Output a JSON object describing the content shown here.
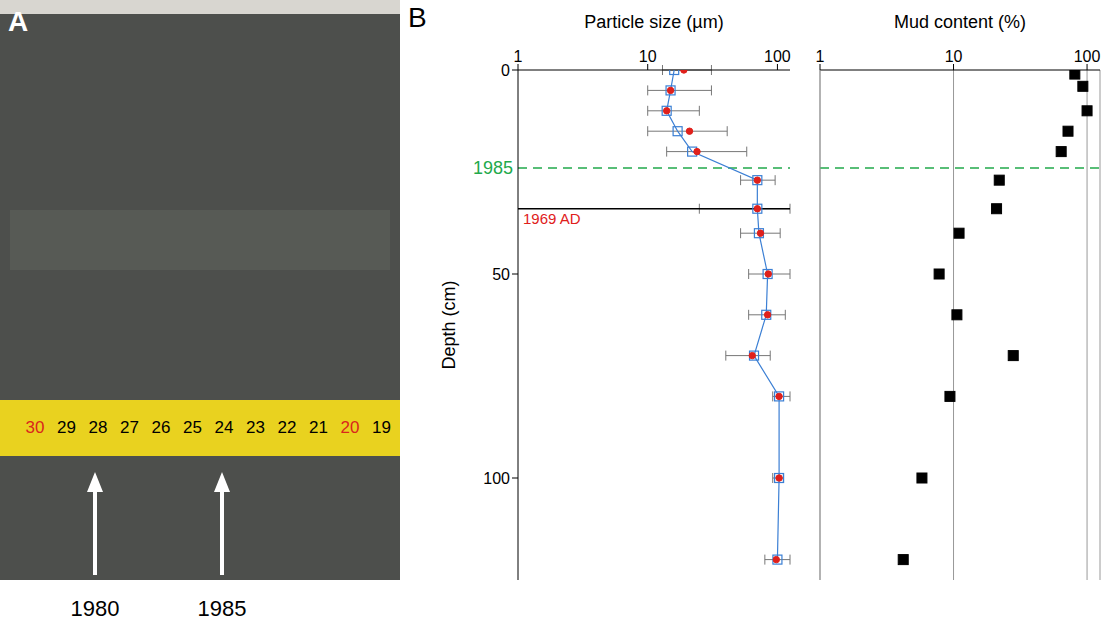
{
  "panel_a": {
    "letter": "A",
    "tape_labels": [
      "30",
      "29",
      "28",
      "27",
      "26",
      "25",
      "24",
      "23",
      "22",
      "21",
      "20",
      "19"
    ],
    "tape_label_colors": [
      "#d9261c",
      "#000000",
      "#000000",
      "#000000",
      "#000000",
      "#000000",
      "#000000",
      "#000000",
      "#000000",
      "#000000",
      "#d9261c",
      "#000000"
    ],
    "arrow_labels": [
      "1980",
      "1985"
    ]
  },
  "panel_b_letter": "B",
  "chart_data": [
    {
      "type": "scatter",
      "x_label": "Particle size (µm)",
      "y_label": "Depth (cm)",
      "log": "x",
      "xlim": [
        1,
        125
      ],
      "xticks": [
        1,
        10,
        100
      ],
      "ylim": [
        0,
        125
      ],
      "yticks": [
        0,
        50,
        100
      ],
      "grid": false,
      "series": [
        {
          "color": "#3b7fd4",
          "marker": "open_square",
          "line_style": "solid",
          "x": [
            16,
            15,
            14,
            17,
            22,
            70,
            70,
            72,
            84,
            82,
            66,
            103,
            103,
            100
          ],
          "y": [
            0,
            5,
            10,
            15,
            20,
            27,
            34,
            40,
            50,
            60,
            70,
            80,
            100,
            120
          ]
        },
        {
          "color": "#e0201b",
          "marker": "circle",
          "x": [
            19,
            15,
            14,
            21,
            24,
            70,
            70,
            74,
            85,
            84,
            64,
            103,
            103,
            98
          ],
          "y": [
            0,
            5,
            10,
            15,
            20,
            27,
            34,
            40,
            50,
            60,
            70,
            80,
            100,
            120
          ],
          "x_error_minus": [
            6,
            5,
            4,
            11,
            10,
            18,
            45,
            22,
            25,
            24,
            24,
            11,
            11,
            18
          ],
          "x_error_plus": [
            12,
            16,
            11,
            20,
            34,
            26,
            55,
            31,
            40,
            31,
            24,
            22,
            8,
            27
          ]
        }
      ],
      "annotations": [
        {
          "text": "1969 AD",
          "y": 34,
          "color": "#e0201b",
          "line_color": "#000000",
          "line_style": "solid"
        },
        {
          "text": "1985",
          "y": 24,
          "color": "#22a94b",
          "line_color": "#22a94b",
          "line_style": "dashed"
        }
      ]
    },
    {
      "type": "scatter",
      "x_label": "Mud content (%)",
      "log": "x",
      "xlim": [
        1,
        125
      ],
      "xticks": [
        1,
        10,
        100
      ],
      "ylim": [
        0,
        125
      ],
      "grid": true,
      "tick_labels": "x",
      "series": [
        {
          "color": "#000000",
          "marker": "square",
          "x": [
            81,
            93,
            100,
            72,
            64,
            22,
            21,
            11,
            7.8,
            10.6,
            28,
            9.4,
            5.8,
            4.2
          ],
          "y": [
            1,
            4,
            10,
            15,
            20,
            27,
            34,
            40,
            50,
            60,
            70,
            80,
            100,
            120
          ]
        }
      ],
      "annotations": [
        {
          "y": 24,
          "color": "#22a94b",
          "line_color": "#22a94b",
          "line_style": "dashed"
        }
      ]
    }
  ]
}
